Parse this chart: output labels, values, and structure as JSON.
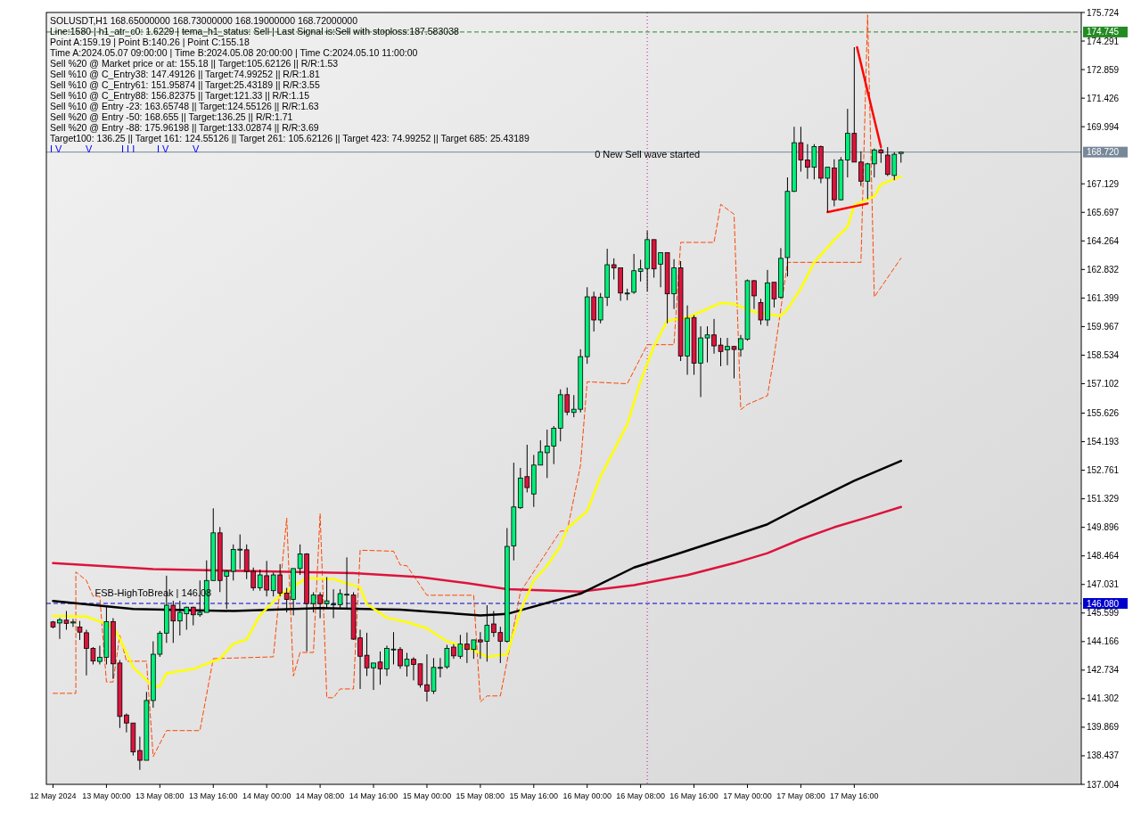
{
  "chart_data": {
    "type": "candlestick",
    "title": "SOLUSDT,H1  168.65000000 168.73000000 168.19000000 168.72000000",
    "annotations": [
      "Line:1580 | h1_atr_c0: 1.6229 | tema_h1_status: Sell | Last Signal is:Sell with stoploss:187.583038",
      "Point A:159.19 | Point B:140.26 | Point C:155.18",
      "Time A:2024.05.07 09:00:00 | Time B:2024.05.08 20:00:00 | Time C:2024.05.10 11:00:00",
      "Sell %20 @ Market price or at: 155.18 || Target:105.62126 || R/R:1.53",
      "Sell %10 @ C_Entry38: 147.49126 || Target:74.99252 || R/R:1.81",
      "Sell %10 @ C_Entry61: 151.95874 || Target:25.43189 || R/R:3.55",
      "Sell %10 @ C_Entry88: 156.82375 || Target:121.33 || R/R:1.15",
      "Sell %10 @ Entry -23: 163.65748 || Target:124.55126 || R/R:1.63",
      "Sell %20 @ Entry -50: 168.655 || Target:136.25 || R/R:1.71",
      "Sell %20 @ Entry -88: 175.96198 || Target:133.02874 || R/R:3.69",
      "Target100: 136.25 || Target 161: 124.55126 || Target 261: 105.62126 || Target 423: 74.99252 || Target 685: 25.43189",
      {
        "text": "0 New Sell wave started",
        "x": "2024-05-16T09:00",
        "y": 168.1
      },
      {
        "text": "FSB-HighToBreak | 146.08",
        "x": "2024-05-13T07:00",
        "y": 146.08
      },
      "I V",
      "V",
      "I I I",
      "I V",
      "V"
    ],
    "xlim": [
      "2024-05-12T15:00",
      "2024-05-19T02:00"
    ],
    "xticks": [
      {
        "value": "2024-05-12T16:00",
        "label": "12 May 2024"
      },
      {
        "value": "2024-05-13T00:00",
        "label": "13 May 00:00"
      },
      {
        "value": "2024-05-13T08:00",
        "label": "13 May 08:00"
      },
      {
        "value": "2024-05-13T16:00",
        "label": "13 May 16:00"
      },
      {
        "value": "2024-05-14T00:00",
        "label": "14 May 00:00"
      },
      {
        "value": "2024-05-14T08:00",
        "label": "14 May 08:00"
      },
      {
        "value": "2024-05-14T16:00",
        "label": "14 May 16:00"
      },
      {
        "value": "2024-05-15T00:00",
        "label": "15 May 00:00"
      },
      {
        "value": "2024-05-15T08:00",
        "label": "15 May 08:00"
      },
      {
        "value": "2024-05-15T16:00",
        "label": "15 May 16:00"
      },
      {
        "value": "2024-05-16T00:00",
        "label": "16 May 00:00"
      },
      {
        "value": "2024-05-16T08:00",
        "label": "16 May 08:00"
      },
      {
        "value": "2024-05-16T16:00",
        "label": "16 May 16:00"
      },
      {
        "value": "2024-05-17T00:00",
        "label": "17 May 00:00"
      },
      {
        "value": "2024-05-17T08:00",
        "label": "17 May 08:00"
      },
      {
        "value": "2024-05-17T16:00",
        "label": "17 May 16:00"
      }
    ],
    "ylim": [
      137.004,
      175.724
    ],
    "yticks": [
      137.004,
      138.437,
      139.869,
      141.302,
      142.734,
      144.166,
      145.599,
      147.031,
      148.464,
      149.896,
      151.329,
      152.761,
      154.193,
      155.626,
      157.102,
      158.534,
      159.967,
      161.399,
      162.832,
      164.264,
      165.697,
      167.129,
      169.994,
      171.426,
      172.859,
      174.291,
      175.724
    ],
    "ref_lines": [
      {
        "axis": "y",
        "value": 174.745,
        "label": "174.745",
        "color": "#228b22",
        "line_style": "dashed"
      },
      {
        "axis": "y",
        "value": 168.72,
        "label": "168.720",
        "color": "#778899",
        "line_style": "solid"
      },
      {
        "axis": "y",
        "value": 146.08,
        "label": "146.080",
        "color": "#0000cd",
        "line_style": "dashed"
      },
      {
        "axis": "x",
        "value": "2024-05-16T09:00",
        "color": "#c71585",
        "line_style": "dotted"
      }
    ],
    "x": [
      "2024-05-12T16:00",
      "2024-05-12T17:00",
      "2024-05-12T18:00",
      "2024-05-12T19:00",
      "2024-05-12T20:00",
      "2024-05-12T21:00",
      "2024-05-12T22:00",
      "2024-05-12T23:00",
      "2024-05-13T00:00",
      "2024-05-13T01:00",
      "2024-05-13T02:00",
      "2024-05-13T03:00",
      "2024-05-13T04:00",
      "2024-05-13T05:00",
      "2024-05-13T06:00",
      "2024-05-13T07:00",
      "2024-05-13T08:00",
      "2024-05-13T09:00",
      "2024-05-13T10:00",
      "2024-05-13T11:00",
      "2024-05-13T12:00",
      "2024-05-13T13:00",
      "2024-05-13T14:00",
      "2024-05-13T15:00",
      "2024-05-13T16:00",
      "2024-05-13T17:00",
      "2024-05-13T18:00",
      "2024-05-13T19:00",
      "2024-05-13T20:00",
      "2024-05-13T21:00",
      "2024-05-13T22:00",
      "2024-05-13T23:00",
      "2024-05-14T00:00",
      "2024-05-14T01:00",
      "2024-05-14T02:00",
      "2024-05-14T03:00",
      "2024-05-14T04:00",
      "2024-05-14T05:00",
      "2024-05-14T06:00",
      "2024-05-14T07:00",
      "2024-05-14T08:00",
      "2024-05-14T09:00",
      "2024-05-14T10:00",
      "2024-05-14T11:00",
      "2024-05-14T12:00",
      "2024-05-14T13:00",
      "2024-05-14T14:00",
      "2024-05-14T15:00",
      "2024-05-14T16:00",
      "2024-05-14T17:00",
      "2024-05-14T18:00",
      "2024-05-14T19:00",
      "2024-05-14T20:00",
      "2024-05-14T21:00",
      "2024-05-14T22:00",
      "2024-05-14T23:00",
      "2024-05-15T00:00",
      "2024-05-15T01:00",
      "2024-05-15T02:00",
      "2024-05-15T03:00",
      "2024-05-15T04:00",
      "2024-05-15T05:00",
      "2024-05-15T06:00",
      "2024-05-15T07:00",
      "2024-05-15T08:00",
      "2024-05-15T09:00",
      "2024-05-15T10:00",
      "2024-05-15T11:00",
      "2024-05-15T12:00",
      "2024-05-15T13:00",
      "2024-05-15T14:00",
      "2024-05-15T15:00",
      "2024-05-15T16:00",
      "2024-05-15T17:00",
      "2024-05-15T18:00",
      "2024-05-15T19:00",
      "2024-05-15T20:00",
      "2024-05-15T21:00",
      "2024-05-15T22:00",
      "2024-05-15T23:00",
      "2024-05-16T00:00",
      "2024-05-16T01:00",
      "2024-05-16T02:00",
      "2024-05-16T03:00",
      "2024-05-16T04:00",
      "2024-05-16T05:00",
      "2024-05-16T06:00",
      "2024-05-16T07:00",
      "2024-05-16T08:00",
      "2024-05-16T09:00",
      "2024-05-16T10:00",
      "2024-05-16T11:00",
      "2024-05-16T12:00",
      "2024-05-16T13:00",
      "2024-05-16T14:00",
      "2024-05-16T15:00",
      "2024-05-16T16:00",
      "2024-05-16T17:00",
      "2024-05-16T18:00",
      "2024-05-16T19:00",
      "2024-05-16T20:00",
      "2024-05-16T21:00",
      "2024-05-16T22:00",
      "2024-05-16T23:00",
      "2024-05-17T00:00",
      "2024-05-17T01:00",
      "2024-05-17T02:00",
      "2024-05-17T03:00",
      "2024-05-17T04:00",
      "2024-05-17T05:00",
      "2024-05-17T06:00",
      "2024-05-17T07:00",
      "2024-05-17T08:00",
      "2024-05-17T09:00",
      "2024-05-17T10:00",
      "2024-05-17T11:00",
      "2024-05-17T12:00",
      "2024-05-17T13:00",
      "2024-05-17T14:00",
      "2024-05-17T15:00",
      "2024-05-17T16:00",
      "2024-05-17T17:00",
      "2024-05-17T18:00",
      "2024-05-17T19:00",
      "2024-05-17T20:00",
      "2024-05-17T21:00",
      "2024-05-17T22:00",
      "2024-05-17T23:00"
    ],
    "ohlc": [
      [
        145.15,
        145.2,
        144.83,
        144.9
      ],
      [
        145.1,
        145.35,
        144.3,
        145.26
      ],
      [
        145.24,
        145.7,
        144.76,
        145.08
      ],
      [
        145.1,
        145.3,
        144.9,
        145.15
      ],
      [
        144.9,
        145.2,
        144.25,
        144.64
      ],
      [
        144.61,
        144.76,
        142.47,
        143.82
      ],
      [
        143.82,
        143.89,
        143.02,
        143.19
      ],
      [
        143.17,
        143.96,
        143.02,
        143.38
      ],
      [
        143.38,
        145.92,
        143.02,
        145.17
      ],
      [
        145.17,
        145.34,
        142.3,
        143.05
      ],
      [
        143.09,
        143.24,
        139.83,
        140.41
      ],
      [
        140.48,
        140.56,
        139.61,
        140.08
      ],
      [
        140.08,
        140.08,
        138.45,
        138.63
      ],
      [
        138.7,
        139.4,
        137.73,
        138.21
      ],
      [
        138.21,
        141.64,
        138.21,
        141.21
      ],
      [
        141.21,
        144.18,
        140.85,
        143.53
      ],
      [
        143.53,
        144.7,
        143.4,
        144.59
      ],
      [
        144.59,
        147.47,
        144.1,
        145.99
      ],
      [
        145.99,
        146.21,
        144.1,
        145.2
      ],
      [
        145.2,
        146.21,
        144.47,
        145.63
      ],
      [
        145.56,
        145.92,
        144.76,
        145.89
      ],
      [
        145.89,
        145.92,
        144.98,
        145.51
      ],
      [
        145.51,
        147.23,
        145.41,
        145.63
      ],
      [
        145.63,
        148.24,
        145.63,
        147.23
      ],
      [
        147.23,
        150.85,
        147.23,
        149.62
      ],
      [
        149.62,
        149.91,
        146.65,
        147.23
      ],
      [
        147.44,
        147.75,
        145.8,
        147.69
      ],
      [
        147.69,
        149.04,
        147.23,
        148.79
      ],
      [
        148.77,
        149.54,
        147.8,
        148.8
      ],
      [
        148.77,
        149.04,
        147.3,
        147.69
      ],
      [
        147.69,
        147.88,
        146.72,
        146.86
      ],
      [
        146.86,
        147.78,
        146.72,
        147.51
      ],
      [
        147.47,
        148.21,
        146.43,
        146.75
      ],
      [
        146.72,
        147.63,
        146.43,
        147.51
      ],
      [
        147.51,
        148.05,
        146.43,
        146.6
      ],
      [
        146.6,
        146.86,
        145.63,
        146.28
      ],
      [
        146.28,
        147.83,
        145.48,
        147.83
      ],
      [
        147.83,
        149.04,
        147.51,
        148.56
      ],
      [
        148.56,
        148.6,
        143.67,
        146.07
      ],
      [
        146.07,
        146.64,
        145.63,
        146.5
      ],
      [
        146.5,
        146.64,
        145.34,
        146.07
      ],
      [
        146.07,
        147.4,
        145.85,
        146.21
      ],
      [
        146.03,
        146.79,
        145.34,
        146.05
      ],
      [
        146.02,
        146.79,
        145.85,
        146.57
      ],
      [
        146.54,
        148.39,
        145.85,
        146.54
      ],
      [
        146.5,
        146.64,
        144.25,
        144.29
      ],
      [
        144.35,
        144.76,
        141.79,
        143.43
      ],
      [
        143.48,
        144.61,
        142.44,
        142.85
      ],
      [
        142.85,
        143.09,
        141.74,
        143.09
      ],
      [
        143.14,
        143.67,
        142.0,
        142.8
      ],
      [
        142.8,
        143.96,
        142.44,
        143.82
      ],
      [
        143.79,
        144.64,
        143.02,
        143.79
      ],
      [
        143.77,
        143.89,
        142.8,
        142.95
      ],
      [
        142.95,
        143.6,
        142.41,
        143.28
      ],
      [
        143.28,
        143.38,
        142.22,
        143.02
      ],
      [
        143.05,
        143.05,
        141.86,
        142.0
      ],
      [
        142.0,
        143.53,
        141.16,
        141.68
      ],
      [
        141.68,
        143.34,
        141.54,
        142.87
      ],
      [
        142.87,
        143.34,
        142.37,
        142.87
      ],
      [
        142.9,
        144.0,
        142.8,
        143.82
      ],
      [
        143.89,
        144.04,
        143.3,
        143.45
      ],
      [
        143.43,
        144.5,
        143.3,
        144.04
      ],
      [
        144.04,
        144.62,
        143.09,
        143.77
      ],
      [
        143.77,
        144.25,
        143.3,
        144.25
      ],
      [
        144.25,
        144.64,
        143.3,
        144.15
      ],
      [
        144.18,
        145.99,
        143.16,
        144.98
      ],
      [
        145.05,
        145.7,
        144.4,
        144.62
      ],
      [
        144.62,
        144.91,
        143.09,
        144.18
      ],
      [
        144.18,
        149.86,
        144.11,
        148.94
      ],
      [
        148.96,
        153.14,
        148.24,
        150.92
      ],
      [
        150.88,
        152.88,
        150.82,
        152.37
      ],
      [
        152.44,
        154.04,
        151.65,
        151.89
      ],
      [
        151.57,
        153.53,
        150.92,
        153.02
      ],
      [
        153.02,
        154.26,
        153.02,
        153.68
      ],
      [
        153.64,
        154.8,
        152.37,
        153.97
      ],
      [
        153.97,
        154.98,
        153.07,
        154.87
      ],
      [
        154.87,
        156.82,
        154.21,
        156.55
      ],
      [
        156.55,
        156.91,
        155.52,
        155.68
      ],
      [
        155.66,
        156.53,
        155.42,
        155.82
      ],
      [
        155.82,
        158.83,
        155.66,
        158.46
      ],
      [
        158.46,
        161.94,
        158.1,
        161.46
      ],
      [
        161.46,
        161.72,
        159.72,
        160.3
      ],
      [
        160.3,
        161.65,
        160.13,
        161.43
      ],
      [
        161.43,
        163.87,
        161.0,
        163.07
      ],
      [
        163.07,
        163.39,
        162.33,
        162.91
      ],
      [
        162.91,
        162.91,
        161.26,
        161.65
      ],
      [
        161.65,
        161.87,
        161.29,
        161.65
      ],
      [
        161.69,
        163.61,
        161.61,
        162.77
      ],
      [
        162.74,
        163.32,
        162.23,
        162.86
      ],
      [
        162.88,
        164.77,
        161.72,
        164.33
      ],
      [
        164.33,
        164.33,
        162.42,
        162.86
      ],
      [
        163.1,
        163.68,
        161.94,
        163.68
      ],
      [
        163.68,
        163.68,
        160.13,
        161.61
      ],
      [
        161.61,
        163.35,
        160.85,
        162.91
      ],
      [
        162.91,
        163.25,
        158.24,
        158.49
      ],
      [
        158.49,
        161.03,
        157.55,
        160.39
      ],
      [
        160.42,
        160.54,
        157.55,
        158.13
      ],
      [
        158.13,
        159.98,
        156.43,
        159.4
      ],
      [
        159.4,
        159.98,
        158.17,
        159.55
      ],
      [
        159.55,
        160.35,
        158.61,
        159.0
      ],
      [
        159.04,
        159.4,
        157.98,
        158.72
      ],
      [
        158.8,
        159.4,
        158.03,
        158.97
      ],
      [
        158.97,
        159.0,
        157.37,
        158.82
      ],
      [
        158.82,
        159.55,
        158.46,
        159.36
      ],
      [
        159.33,
        162.33,
        159.26,
        162.27
      ],
      [
        162.27,
        162.3,
        160.85,
        161.51
      ],
      [
        161.17,
        161.36,
        160.06,
        160.3
      ],
      [
        160.3,
        162.81,
        160.0,
        162.16
      ],
      [
        162.19,
        162.19,
        160.93,
        161.36
      ],
      [
        161.43,
        163.9,
        161.36,
        163.39
      ],
      [
        163.43,
        167.45,
        162.48,
        166.75
      ],
      [
        166.75,
        169.99,
        166.72,
        169.19
      ],
      [
        169.19,
        169.99,
        167.74,
        168.32
      ],
      [
        168.32,
        169.12,
        167.38,
        167.96
      ],
      [
        167.96,
        169.12,
        167.35,
        169.0
      ],
      [
        169.0,
        169.05,
        167.16,
        167.41
      ],
      [
        167.41,
        167.96,
        165.71,
        167.96
      ],
      [
        167.92,
        168.36,
        166.0,
        166.33
      ],
      [
        166.33,
        168.47,
        166.29,
        168.32
      ],
      [
        168.32,
        170.89,
        167.45,
        169.66
      ],
      [
        169.66,
        173.98,
        168.22,
        168.22
      ],
      [
        168.22,
        168.76,
        167.02,
        167.26
      ],
      [
        167.26,
        168.18,
        166.36,
        168.13
      ],
      [
        168.13,
        168.9,
        167.45,
        168.83
      ],
      [
        168.83,
        168.9,
        168.18,
        168.68
      ],
      [
        168.57,
        168.97,
        167.52,
        167.6
      ],
      [
        167.55,
        168.71,
        167.31,
        168.61
      ],
      [
        168.65,
        168.73,
        168.19,
        168.72
      ]
    ],
    "series": [
      {
        "type": "line",
        "color": "#ff4500",
        "line_style": "dashed",
        "x": [
          "2024-05-12T16:00",
          "2024-05-12T19:25",
          "2024-05-12T19:25",
          "2024-05-12T21:00",
          "2024-05-12T22:00",
          "2024-05-12T23:00",
          "2024-05-13T00:00",
          "2024-05-13T01:00",
          "2024-05-13T02:00",
          "2024-05-13T03:00",
          "2024-05-13T06:00",
          "2024-05-13T07:00",
          "2024-05-13T09:00",
          "2024-05-13T14:00",
          "2024-05-13T16:00",
          "2024-05-14T01:00",
          "2024-05-14T03:00",
          "2024-05-14T04:00",
          "2024-05-14T05:00",
          "2024-05-14T07:00",
          "2024-05-14T08:00",
          "2024-05-14T09:00",
          "2024-05-14T10:00",
          "2024-05-14T11:00",
          "2024-05-14T13:00",
          "2024-05-14T14:00",
          "2024-05-14T19:00",
          "2024-05-14T20:00",
          "2024-05-14T21:00",
          "2024-05-15T00:00",
          "2024-05-15T07:00",
          "2024-05-15T08:00",
          "2024-05-15T09:00",
          "2024-05-15T11:00",
          "2024-05-15T14:00",
          "2024-05-15T20:00",
          "2024-05-15T21:00",
          "2024-05-15T23:00",
          "2024-05-16T00:00",
          "2024-05-16T06:00",
          "2024-05-16T09:00",
          "2024-05-16T13:00",
          "2024-05-16T14:00",
          "2024-05-16T19:00",
          "2024-05-16T20:00",
          "2024-05-16T22:00",
          "2024-05-16T23:00",
          "2024-05-17T00:00",
          "2024-05-17T03:00",
          "2024-05-17T04:00",
          "2024-05-17T06:00",
          "2024-05-17T17:00",
          "2024-05-17T18:00",
          "2024-05-17T19:00",
          "2024-05-17T23:00"
        ],
        "values": [
          141.57,
          141.57,
          147.66,
          147.23,
          146.44,
          146.44,
          142.14,
          142.14,
          144.48,
          143.18,
          143.18,
          138.4,
          139.7,
          139.7,
          143.31,
          143.4,
          150.36,
          142.44,
          143.62,
          143.62,
          150.58,
          141.35,
          141.35,
          141.79,
          141.79,
          148.75,
          148.7,
          148.01,
          147.97,
          146.49,
          146.49,
          141.14,
          141.44,
          141.44,
          146.66,
          149.71,
          149.71,
          153.01,
          157.2,
          157.1,
          159.06,
          159.06,
          164.19,
          164.19,
          166.1,
          165.6,
          155.8,
          156.06,
          156.5,
          158.5,
          163.19,
          163.19,
          175.6,
          161.45,
          163.4
        ]
      },
      {
        "type": "line",
        "color": "#dc143c",
        "x": [
          "2024-05-12T16:00",
          "2024-05-13T07:00",
          "2024-05-13T22:00",
          "2024-05-14T13:00",
          "2024-05-14T23:00",
          "2024-05-15T06:00",
          "2024-05-15T12:00",
          "2024-05-15T23:00",
          "2024-05-16T07:00",
          "2024-05-16T15:00",
          "2024-05-16T22:00",
          "2024-05-17T03:00",
          "2024-05-17T08:00",
          "2024-05-17T13:00",
          "2024-05-17T18:00",
          "2024-05-17T23:00"
        ],
        "values": [
          148.1,
          147.8,
          147.7,
          147.6,
          147.4,
          147.1,
          146.8,
          146.67,
          147.0,
          147.5,
          148.1,
          148.6,
          149.3,
          149.9,
          150.4,
          150.92
        ]
      },
      {
        "type": "line",
        "color": "#000000",
        "x": [
          "2024-05-12T16:00",
          "2024-05-12T22:00",
          "2024-05-13T04:00",
          "2024-05-13T19:00",
          "2024-05-14T08:00",
          "2024-05-14T20:00",
          "2024-05-15T08:00",
          "2024-05-15T12:00",
          "2024-05-15T23:00",
          "2024-05-16T07:00",
          "2024-05-16T14:00",
          "2024-05-16T22:00",
          "2024-05-17T03:00",
          "2024-05-17T08:00",
          "2024-05-17T16:00",
          "2024-05-17T23:00"
        ],
        "values": [
          146.2,
          146.0,
          145.8,
          145.7,
          145.85,
          145.77,
          145.48,
          145.55,
          146.57,
          147.88,
          148.62,
          149.49,
          150.05,
          150.92,
          152.23,
          153.23
        ]
      },
      {
        "type": "line",
        "color": "#ffff00",
        "x": [
          "2024-05-12T16:00",
          "2024-05-12T21:00",
          "2024-05-13T01:00",
          "2024-05-13T02:00",
          "2024-05-13T04:00",
          "2024-05-13T07:00",
          "2024-05-13T08:00",
          "2024-05-13T09:00",
          "2024-05-13T13:00",
          "2024-05-13T17:00",
          "2024-05-13T19:00",
          "2024-05-13T21:00",
          "2024-05-13T23:00",
          "2024-05-14T02:00",
          "2024-05-14T06:00",
          "2024-05-14T10:00",
          "2024-05-14T14:00",
          "2024-05-14T15:00",
          "2024-05-14T18:00",
          "2024-05-14T21:00",
          "2024-05-15T00:00",
          "2024-05-15T03:00",
          "2024-05-15T06:00",
          "2024-05-15T09:00",
          "2024-05-15T12:00",
          "2024-05-15T14:00",
          "2024-05-15T16:00",
          "2024-05-15T18:00",
          "2024-05-15T20:00",
          "2024-05-15T21:00",
          "2024-05-16T00:00",
          "2024-05-16T02:00",
          "2024-05-16T06:00",
          "2024-05-16T08:00",
          "2024-05-16T10:00",
          "2024-05-16T12:00",
          "2024-05-16T15:00",
          "2024-05-16T20:00",
          "2024-05-16T22:00",
          "2024-05-17T01:00",
          "2024-05-17T05:00",
          "2024-05-17T06:00",
          "2024-05-17T08:00",
          "2024-05-17T10:00",
          "2024-05-17T13:00",
          "2024-05-17T15:00",
          "2024-05-17T16:00",
          "2024-05-17T19:00",
          "2024-05-17T20:00",
          "2024-05-17T23:00"
        ],
        "values": [
          145.45,
          145.42,
          144.92,
          144.31,
          142.88,
          141.92,
          141.92,
          142.57,
          142.79,
          143.31,
          144.05,
          144.27,
          145.49,
          146.49,
          147.36,
          147.3,
          146.88,
          146.05,
          145.36,
          145.14,
          144.83,
          144.18,
          143.88,
          143.4,
          143.53,
          145.7,
          147.23,
          147.97,
          148.97,
          149.84,
          150.71,
          152.45,
          155.06,
          157.23,
          158.97,
          160.27,
          160.41,
          161.15,
          161.1,
          160.71,
          160.49,
          160.84,
          161.88,
          163.19,
          164.32,
          164.97,
          166.06,
          166.5,
          167.1,
          167.5
        ]
      },
      {
        "type": "line",
        "color": "#ff0000",
        "x": [
          "2024-05-17T16:25",
          "2024-05-17T20:00"
        ],
        "values": [
          173.98,
          168.97
        ]
      },
      {
        "type": "line",
        "color": "#ff0000",
        "x": [
          "2024-05-17T12:00",
          "2024-05-17T18:00"
        ],
        "values": [
          165.71,
          166.14
        ]
      }
    ]
  }
}
